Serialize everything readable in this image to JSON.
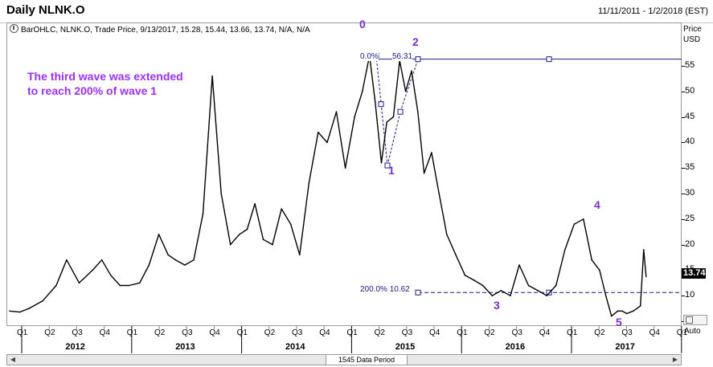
{
  "window": {
    "title": "Daily NLNK.O",
    "date_range": "11/11/2011 - 1/2/2018 (EST)"
  },
  "ohlc_line": "BarOHLC, NLNK.O, Trade Price, 9/13/2017, 15.28, 15.44, 13.66, 13.74, N/A, N/A",
  "price_axis": {
    "header_1": "Price",
    "header_2": "USD",
    "ticks": [
      "55",
      "50",
      "45",
      "40",
      "35",
      "30",
      "25",
      "20",
      "15",
      "10",
      "5"
    ],
    "current_price": "13.74",
    "auto_label": "Auto"
  },
  "annotation": "The third wave was extended to reach 200% of wave 1",
  "wave_labels": [
    "0",
    "1",
    "2",
    "3",
    "4",
    "5"
  ],
  "fib_levels": [
    "0.0%",
    "56.31",
    "200.0% 10.62"
  ],
  "x_axis": {
    "quarters": [
      "Q1",
      "Q2",
      "Q3",
      "Q4",
      "Q1",
      "Q2",
      "Q3",
      "Q4",
      "Q1",
      "Q2",
      "Q3",
      "Q4",
      "Q1",
      "Q2",
      "Q3",
      "Q4",
      "Q1",
      "Q2",
      "Q3",
      "Q4",
      "Q1",
      "Q2",
      "Q3",
      "Q4",
      "Q1"
    ],
    "years": [
      "2012",
      "2013",
      "2014",
      "2015",
      "2016",
      "2017"
    ]
  },
  "scrollbar": {
    "period_label": "1545 Data Period"
  },
  "colors": {
    "price_line": "#000000",
    "fib_line": "#1c1c8a",
    "annotation": "#9b30ff",
    "wave_label": "#7a2fd0"
  },
  "chart_data": {
    "type": "line",
    "title": "Daily NLNK.O",
    "ylabel": "Price USD",
    "ylim": [
      3,
      60
    ],
    "x": [
      "2011-11-11",
      "2011-12-15",
      "2012-01-15",
      "2012-03-01",
      "2012-04-15",
      "2012-05-20",
      "2012-07-01",
      "2012-08-15",
      "2012-09-15",
      "2012-10-15",
      "2012-11-15",
      "2012-12-15",
      "2013-01-20",
      "2013-02-20",
      "2013-03-25",
      "2013-04-25",
      "2013-05-20",
      "2013-06-20",
      "2013-07-20",
      "2013-08-20",
      "2013-09-20",
      "2013-10-20",
      "2013-11-20",
      "2013-12-20",
      "2014-01-15",
      "2014-02-10",
      "2014-03-10",
      "2014-04-10",
      "2014-05-10",
      "2014-06-10",
      "2014-07-10",
      "2014-08-10",
      "2014-09-10",
      "2014-10-10",
      "2014-11-10",
      "2014-12-10",
      "2015-01-10",
      "2015-02-05",
      "2015-03-01",
      "2015-03-20",
      "2015-04-10",
      "2015-04-28",
      "2015-05-20",
      "2015-06-10",
      "2015-06-30",
      "2015-07-20",
      "2015-08-10",
      "2015-08-31",
      "2015-09-25",
      "2015-10-20",
      "2015-11-15",
      "2015-12-15",
      "2016-01-15",
      "2016-02-15",
      "2016-03-15",
      "2016-04-15",
      "2016-05-15",
      "2016-06-15",
      "2016-07-15",
      "2016-08-15",
      "2016-09-15",
      "2016-10-15",
      "2016-11-15",
      "2016-12-15",
      "2017-01-15",
      "2017-02-15",
      "2017-03-15",
      "2017-04-10",
      "2017-05-01",
      "2017-05-20",
      "2017-06-10",
      "2017-06-25",
      "2017-07-10",
      "2017-08-01",
      "2017-08-25",
      "2017-09-05",
      "2017-09-13"
    ],
    "series": [
      {
        "values": [
          7,
          6.8,
          7.5,
          9,
          12,
          17,
          12.5,
          15,
          17,
          14,
          12,
          12,
          12.5,
          16,
          22,
          18,
          17,
          16,
          17,
          26,
          53,
          30,
          20,
          22,
          23,
          28,
          21,
          20,
          27,
          24,
          18,
          32,
          42,
          40,
          46,
          35,
          45,
          50,
          57,
          48,
          36,
          44,
          45,
          56,
          50,
          54,
          46,
          34,
          38,
          30,
          22,
          18,
          14,
          13,
          12,
          10,
          11,
          10,
          16,
          12,
          11,
          10,
          12,
          19,
          24,
          25,
          17,
          15,
          10,
          6,
          7,
          7,
          6.5,
          7,
          8,
          19,
          13.74
        ]
      }
    ],
    "annotations": [
      "The third wave was extended to reach 200% of wave 1"
    ],
    "reference_lines": [
      {
        "label": "0.0%",
        "value": 56.31
      },
      {
        "label": "200.0%",
        "value": 10.62
      }
    ]
  }
}
